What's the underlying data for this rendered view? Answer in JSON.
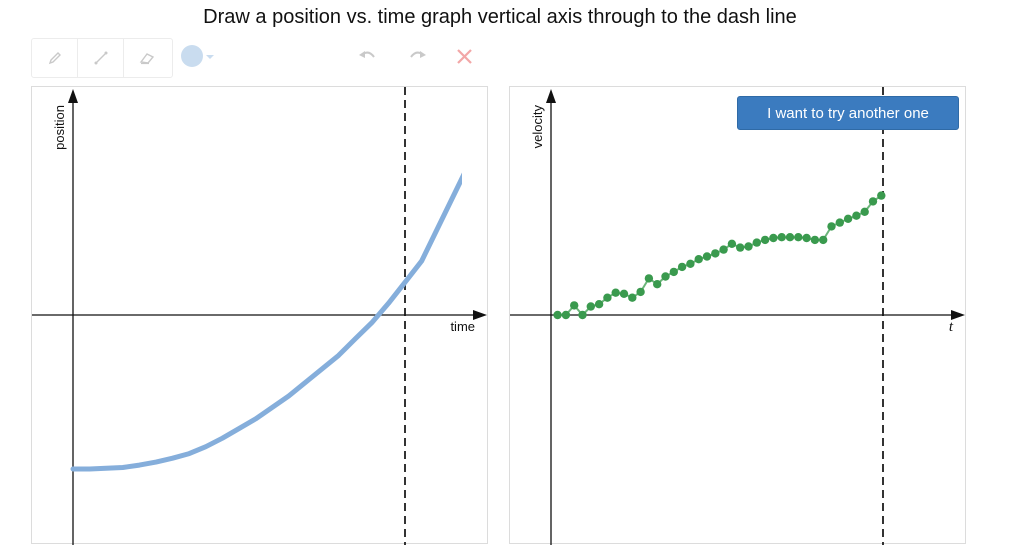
{
  "instruction": "Draw a position vs. time graph vertical axis through to the dash line",
  "toolbar": {
    "tools": [
      {
        "name": "pencil-icon"
      },
      {
        "name": "line-icon"
      },
      {
        "name": "eraser-icon"
      }
    ],
    "color_picker": {
      "color": "#c9dcef",
      "caret_icon": "caret-down-icon"
    },
    "actions": [
      {
        "name": "undo-icon"
      },
      {
        "name": "redo-icon"
      },
      {
        "name": "clear-icon",
        "color": "#f2a7a7"
      }
    ]
  },
  "colors": {
    "position_curve": "#85aedb",
    "velocity_points": "#3a9a4e",
    "velocity_line": "#6bb57a",
    "button": "#3b7bbf",
    "dash_line": "#333333"
  },
  "left_graph": {
    "x_label": "time",
    "y_label": "position"
  },
  "right_graph": {
    "x_label": "t",
    "y_label": "velocity",
    "button_label": "I want to try another one"
  },
  "chart_data": [
    {
      "type": "line",
      "xlabel": "time",
      "ylabel": "position",
      "xlim": [
        0,
        10.8
      ],
      "ylim": [
        -6.0,
        5.5
      ],
      "dashed_line_x": 10,
      "series": [
        {
          "x": [
            0,
            0.5,
            1,
            1.5,
            2,
            2.5,
            3,
            3.5,
            4,
            4.5,
            5,
            5.5,
            6,
            6.5,
            7,
            7.5,
            8,
            8.5,
            9,
            9.5,
            10,
            10.5,
            11.8
          ],
          "y": [
            -4.0,
            -4.0,
            -3.98,
            -3.96,
            -3.9,
            -3.82,
            -3.72,
            -3.6,
            -3.42,
            -3.2,
            -2.95,
            -2.7,
            -2.4,
            -2.1,
            -1.75,
            -1.4,
            -1.05,
            -0.62,
            -0.2,
            0.3,
            0.85,
            1.4,
            3.7
          ]
        }
      ]
    },
    {
      "type": "scatter",
      "xlabel": "t",
      "ylabel": "velocity",
      "xlim": [
        0,
        10.8
      ],
      "ylim": [
        -5.8,
        5.5
      ],
      "dashed_line_x": 10,
      "series": [
        {
          "x": [
            0.2,
            0.45,
            0.7,
            0.95,
            1.2,
            1.45,
            1.7,
            1.95,
            2.2,
            2.45,
            2.7,
            2.95,
            3.2,
            3.45,
            3.7,
            3.95,
            4.2,
            4.45,
            4.7,
            4.95,
            5.2,
            5.45,
            5.7,
            5.95,
            6.2,
            6.45,
            6.7,
            6.95,
            7.2,
            7.45,
            7.7,
            7.95,
            8.2,
            8.45,
            8.7,
            8.95,
            9.2,
            9.45,
            9.7,
            9.95
          ],
          "y": [
            0.0,
            0.0,
            0.25,
            0.0,
            0.22,
            0.28,
            0.45,
            0.58,
            0.55,
            0.45,
            0.6,
            0.95,
            0.8,
            1.0,
            1.12,
            1.25,
            1.33,
            1.45,
            1.52,
            1.6,
            1.7,
            1.85,
            1.75,
            1.78,
            1.88,
            1.95,
            2.0,
            2.02,
            2.02,
            2.02,
            2.0,
            1.95,
            1.95,
            2.3,
            2.4,
            2.5,
            2.58,
            2.68,
            2.95,
            3.1
          ]
        }
      ]
    }
  ]
}
